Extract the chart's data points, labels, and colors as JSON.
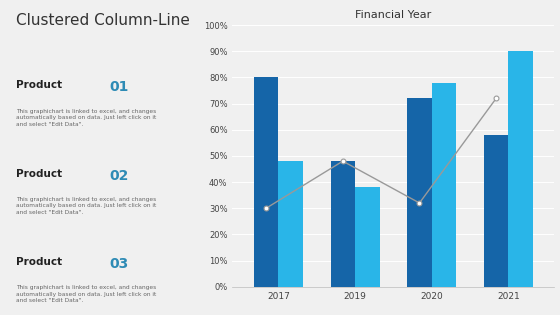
{
  "title": "Clustered Column-Line",
  "chart_title": "Financial Year",
  "years": [
    2017,
    2019,
    2020,
    2021
  ],
  "dark_blue_values": [
    80,
    48,
    72,
    58
  ],
  "light_blue_values": [
    48,
    38,
    78,
    90
  ],
  "line_values": [
    30,
    48,
    32,
    72
  ],
  "dark_blue_color": "#1565a8",
  "light_blue_color": "#29b5e8",
  "line_color": "#999999",
  "bg_color": "#f0f0f0",
  "left_panel_bg": "#ffffff",
  "ylim": [
    0,
    100
  ],
  "product_desc": "This graphichart is linked to excel, and changes\nautomatically based on data. Just left click on it\nand select \"Edit Data\".",
  "title_color": "#2e8bb5",
  "main_title_fontsize": 11,
  "chart_title_fontsize": 8,
  "separator_color": "#1ab0e0"
}
